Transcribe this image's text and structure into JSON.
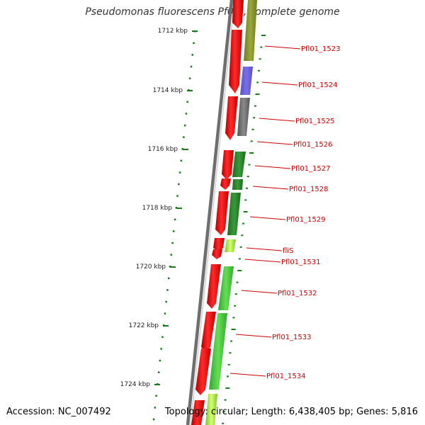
{
  "title": "Pseudomonas fluorescens Pf0-1, complete genome",
  "footer": {
    "accession": "Accession: NC_007492",
    "topology": "Topology: circular; Length: 6,438,405 bp; Genes: 5,816"
  },
  "ruler_labels": [
    "1712 kbp",
    "1714 kbp",
    "1716 kbp",
    "1718 kbp",
    "1720 kbp",
    "1722 kbp",
    "1724 kbp"
  ],
  "gene_labels": [
    "Pfl01_1523",
    "Pfl01_1524",
    "Pfl01_1525",
    "Pfl01_1526",
    "Pfl01_1527",
    "Pfl01_1528",
    "Pfl01_1529",
    "fliS",
    "Pfl01_1531",
    "Pfl01_1532",
    "Pfl01_1533",
    "Pfl01_1534"
  ],
  "colors": {
    "cds_strand": "#ff0000",
    "label_line": "#cc0000",
    "ruler_tick": "#1a7a1a",
    "backbone": "#808080"
  }
}
